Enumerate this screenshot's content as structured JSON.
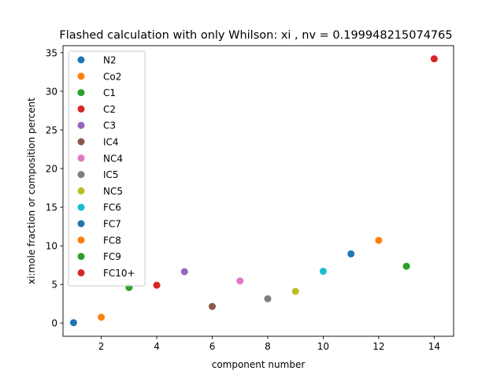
{
  "chart_data": {
    "type": "scatter",
    "title": "Flashed calculation with only Whilson: xi , nv = 0.199948215074765",
    "xlabel": "component number",
    "ylabel": "xi:mole fraction or composition percent",
    "xlim": [
      0.62,
      14.7
    ],
    "ylim": [
      -1.71,
      35.9
    ],
    "xticks": [
      2,
      4,
      6,
      8,
      10,
      12,
      14
    ],
    "yticks": [
      0,
      5,
      10,
      15,
      20,
      25,
      30,
      35
    ],
    "grid": false,
    "legend_position": "upper-left",
    "series": [
      {
        "name": "N2",
        "x": 1,
        "y": 0.05,
        "color": "#1f77b4"
      },
      {
        "name": "Co2",
        "x": 2,
        "y": 0.75,
        "color": "#ff7f0e"
      },
      {
        "name": "C1",
        "x": 3,
        "y": 4.6,
        "color": "#2ca02c"
      },
      {
        "name": "C2",
        "x": 4,
        "y": 4.9,
        "color": "#d62728"
      },
      {
        "name": "C3",
        "x": 5,
        "y": 6.65,
        "color": "#9467bd"
      },
      {
        "name": "IC4",
        "x": 6,
        "y": 2.15,
        "color": "#8c564b"
      },
      {
        "name": "NC4",
        "x": 7,
        "y": 5.45,
        "color": "#e377c2"
      },
      {
        "name": "IC5",
        "x": 8,
        "y": 3.15,
        "color": "#7f7f7f"
      },
      {
        "name": "NC5",
        "x": 9,
        "y": 4.1,
        "color": "#bcbd22"
      },
      {
        "name": "FC6",
        "x": 10,
        "y": 6.7,
        "color": "#17becf"
      },
      {
        "name": "FC7",
        "x": 11,
        "y": 8.95,
        "color": "#1f77b4"
      },
      {
        "name": "FC8",
        "x": 12,
        "y": 10.7,
        "color": "#ff7f0e"
      },
      {
        "name": "FC9",
        "x": 13,
        "y": 7.35,
        "color": "#2ca02c"
      },
      {
        "name": "FC10+",
        "x": 14,
        "y": 34.2,
        "color": "#d62728"
      }
    ]
  }
}
